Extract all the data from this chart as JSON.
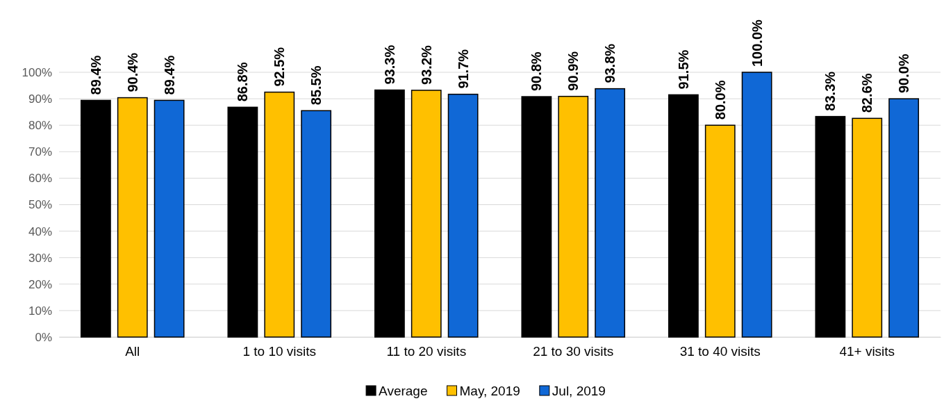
{
  "chart_data": {
    "type": "bar",
    "categories": [
      "All",
      "1 to 10 visits",
      "11 to 20 visits",
      "21 to 30 visits",
      "31 to 40 visits",
      "41+ visits"
    ],
    "series": [
      {
        "name": "Average",
        "color": "#000000",
        "values": [
          89.4,
          86.8,
          93.3,
          90.8,
          91.5,
          83.3
        ],
        "value_labels": [
          "89.4%",
          "86.8%",
          "93.3%",
          "90.8%",
          "91.5%",
          "83.3%"
        ]
      },
      {
        "name": "May, 2019",
        "color": "#ffc000",
        "values": [
          90.4,
          92.5,
          93.2,
          90.9,
          80.0,
          82.6
        ],
        "value_labels": [
          "90.4%",
          "92.5%",
          "93.2%",
          "90.9%",
          "80.0%",
          "82.6%"
        ]
      },
      {
        "name": "Jul, 2019",
        "color": "#1068d6",
        "values": [
          89.4,
          85.5,
          91.7,
          93.8,
          100.0,
          90.0
        ],
        "value_labels": [
          "89.4%",
          "85.5%",
          "91.7%",
          "93.8%",
          "100.0%",
          "90.0%"
        ]
      }
    ],
    "ylim": [
      0,
      100
    ],
    "yticks": [
      {
        "value": 0,
        "label": "0%"
      },
      {
        "value": 10,
        "label": "10%"
      },
      {
        "value": 20,
        "label": "20%"
      },
      {
        "value": 30,
        "label": "30%"
      },
      {
        "value": 40,
        "label": "40%"
      },
      {
        "value": 50,
        "label": "50%"
      },
      {
        "value": 60,
        "label": "60%"
      },
      {
        "value": 70,
        "label": "70%"
      },
      {
        "value": 80,
        "label": "80%"
      },
      {
        "value": 90,
        "label": "90%"
      },
      {
        "value": 100,
        "label": "100%"
      }
    ],
    "grid": "y",
    "legend": "bottom"
  }
}
